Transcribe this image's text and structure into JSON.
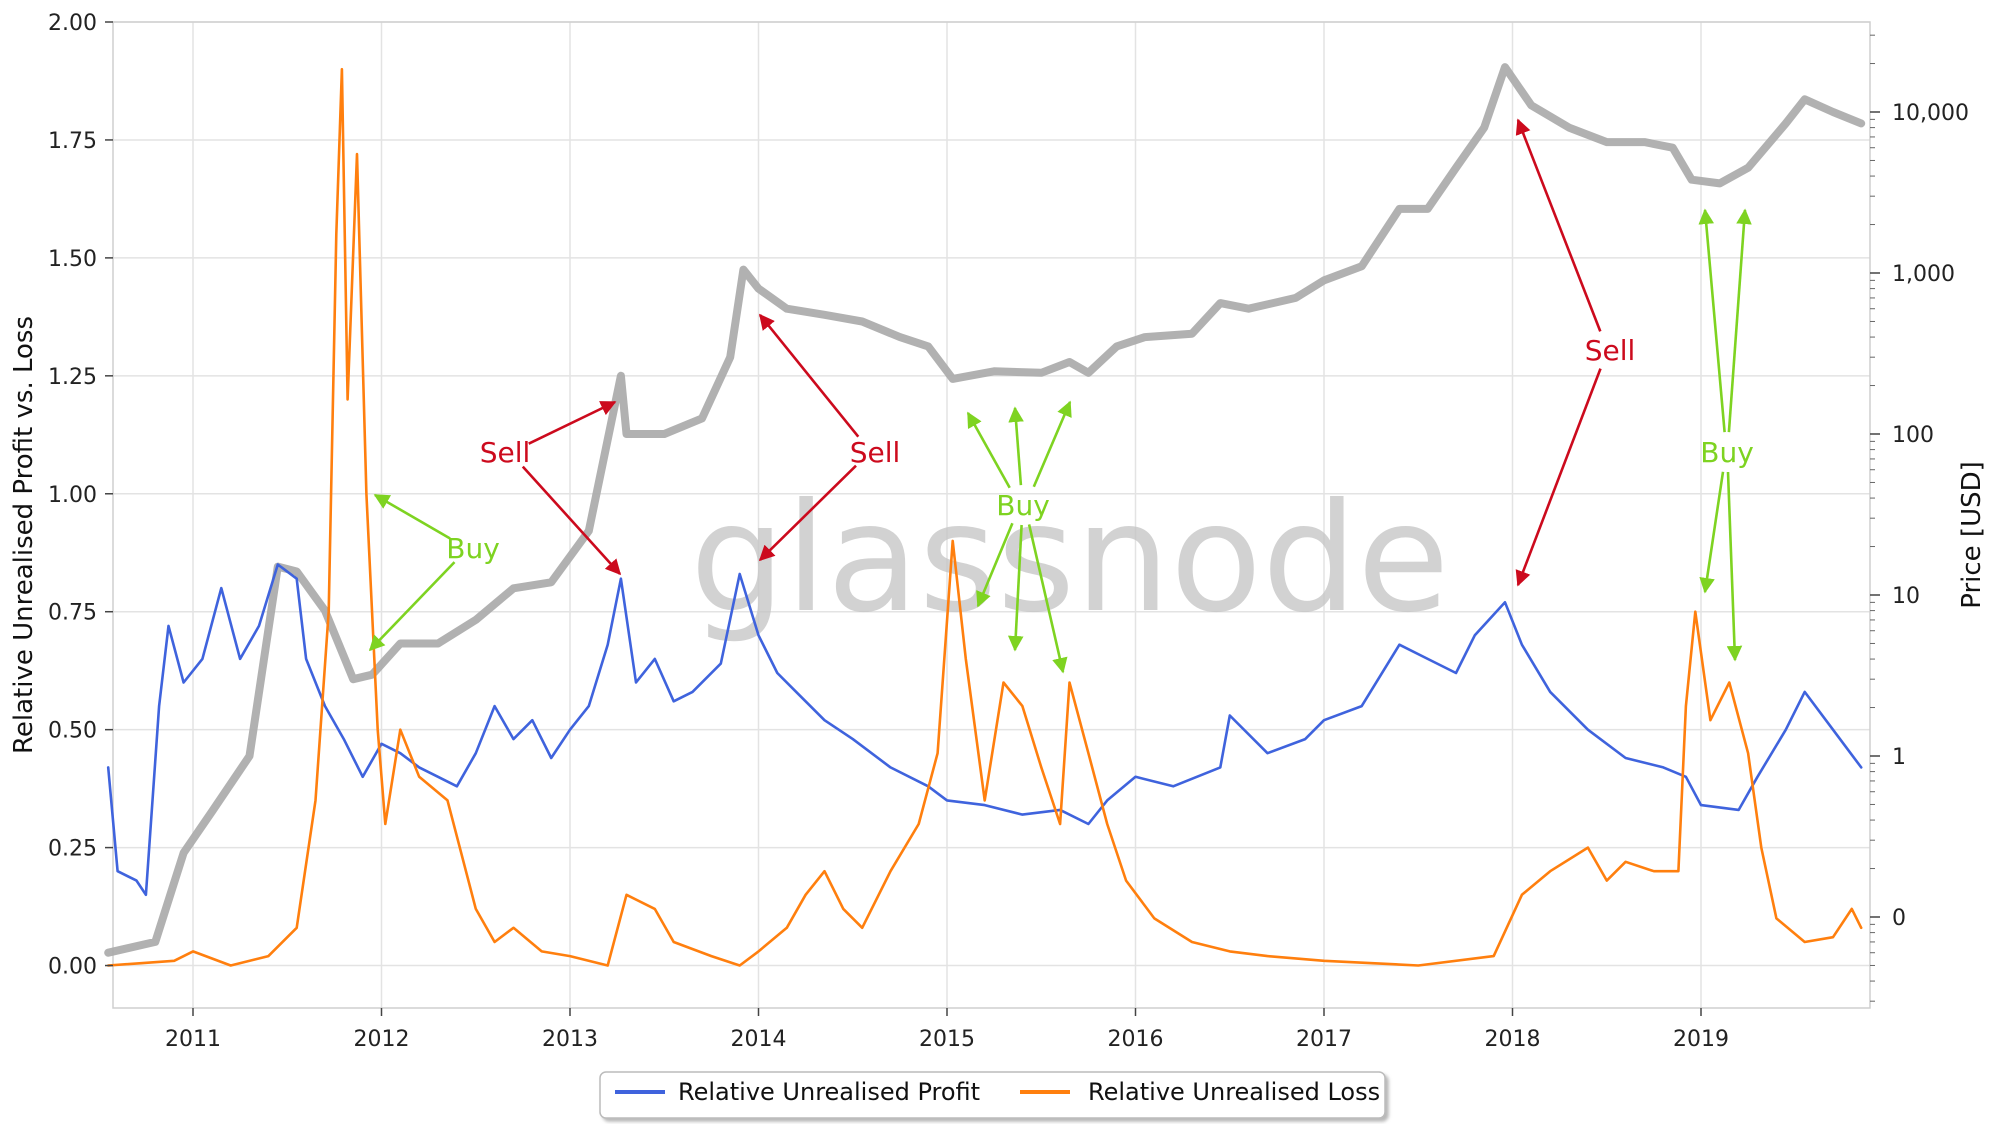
{
  "chart_data": {
    "type": "line",
    "watermark": "glassnode",
    "x_ticks": [
      "2011",
      "2012",
      "2013",
      "2014",
      "2015",
      "2016",
      "2017",
      "2018",
      "2019"
    ],
    "y_left": {
      "label": "Relative Unrealised Profit vs. Loss",
      "range": [
        -0.09,
        2.0
      ],
      "ticks": [
        "0.00",
        "0.25",
        "0.50",
        "0.75",
        "1.00",
        "1.25",
        "1.50",
        "1.75",
        "2.00"
      ]
    },
    "y_right": {
      "label": "Price [USD]",
      "scale": "log",
      "ticks": [
        "0",
        "1",
        "10",
        "100",
        "1,000",
        "10,000"
      ]
    },
    "grid": true,
    "legend_position": "bottom-center",
    "series": [
      {
        "name": "Relative Unrealised Profit",
        "color": "#3f63dd",
        "axis": "left",
        "points": [
          [
            2010.55,
            0.42
          ],
          [
            2010.6,
            0.2
          ],
          [
            2010.7,
            0.18
          ],
          [
            2010.75,
            0.15
          ],
          [
            2010.82,
            0.55
          ],
          [
            2010.87,
            0.72
          ],
          [
            2010.95,
            0.6
          ],
          [
            2011.05,
            0.65
          ],
          [
            2011.15,
            0.8
          ],
          [
            2011.25,
            0.65
          ],
          [
            2011.35,
            0.72
          ],
          [
            2011.45,
            0.85
          ],
          [
            2011.55,
            0.82
          ],
          [
            2011.6,
            0.65
          ],
          [
            2011.7,
            0.55
          ],
          [
            2011.8,
            0.48
          ],
          [
            2011.9,
            0.4
          ],
          [
            2012.0,
            0.47
          ],
          [
            2012.1,
            0.45
          ],
          [
            2012.2,
            0.42
          ],
          [
            2012.3,
            0.4
          ],
          [
            2012.4,
            0.38
          ],
          [
            2012.5,
            0.45
          ],
          [
            2012.6,
            0.55
          ],
          [
            2012.7,
            0.48
          ],
          [
            2012.8,
            0.52
          ],
          [
            2012.9,
            0.44
          ],
          [
            2013.0,
            0.5
          ],
          [
            2013.1,
            0.55
          ],
          [
            2013.2,
            0.68
          ],
          [
            2013.27,
            0.82
          ],
          [
            2013.35,
            0.6
          ],
          [
            2013.45,
            0.65
          ],
          [
            2013.55,
            0.56
          ],
          [
            2013.65,
            0.58
          ],
          [
            2013.8,
            0.64
          ],
          [
            2013.9,
            0.83
          ],
          [
            2014.0,
            0.7
          ],
          [
            2014.1,
            0.62
          ],
          [
            2014.2,
            0.58
          ],
          [
            2014.35,
            0.52
          ],
          [
            2014.5,
            0.48
          ],
          [
            2014.7,
            0.42
          ],
          [
            2014.9,
            0.38
          ],
          [
            2015.0,
            0.35
          ],
          [
            2015.2,
            0.34
          ],
          [
            2015.4,
            0.32
          ],
          [
            2015.6,
            0.33
          ],
          [
            2015.75,
            0.3
          ],
          [
            2015.85,
            0.35
          ],
          [
            2016.0,
            0.4
          ],
          [
            2016.2,
            0.38
          ],
          [
            2016.45,
            0.42
          ],
          [
            2016.5,
            0.53
          ],
          [
            2016.7,
            0.45
          ],
          [
            2016.9,
            0.48
          ],
          [
            2017.0,
            0.52
          ],
          [
            2017.2,
            0.55
          ],
          [
            2017.4,
            0.68
          ],
          [
            2017.55,
            0.65
          ],
          [
            2017.7,
            0.62
          ],
          [
            2017.8,
            0.7
          ],
          [
            2017.96,
            0.77
          ],
          [
            2018.05,
            0.68
          ],
          [
            2018.2,
            0.58
          ],
          [
            2018.4,
            0.5
          ],
          [
            2018.6,
            0.44
          ],
          [
            2018.8,
            0.42
          ],
          [
            2018.92,
            0.4
          ],
          [
            2019.0,
            0.34
          ],
          [
            2019.2,
            0.33
          ],
          [
            2019.3,
            0.4
          ],
          [
            2019.45,
            0.5
          ],
          [
            2019.55,
            0.58
          ],
          [
            2019.7,
            0.5
          ],
          [
            2019.85,
            0.42
          ]
        ]
      },
      {
        "name": "Relative Unrealised Loss",
        "color": "#ff7f0e",
        "axis": "left",
        "points": [
          [
            2010.55,
            0.0
          ],
          [
            2010.9,
            0.01
          ],
          [
            2011.0,
            0.03
          ],
          [
            2011.2,
            0.0
          ],
          [
            2011.4,
            0.02
          ],
          [
            2011.55,
            0.08
          ],
          [
            2011.65,
            0.35
          ],
          [
            2011.72,
            0.75
          ],
          [
            2011.76,
            1.55
          ],
          [
            2011.79,
            1.9
          ],
          [
            2011.82,
            1.2
          ],
          [
            2011.87,
            1.72
          ],
          [
            2011.92,
            1.0
          ],
          [
            2011.98,
            0.5
          ],
          [
            2012.02,
            0.3
          ],
          [
            2012.1,
            0.5
          ],
          [
            2012.2,
            0.4
          ],
          [
            2012.35,
            0.35
          ],
          [
            2012.5,
            0.12
          ],
          [
            2012.6,
            0.05
          ],
          [
            2012.7,
            0.08
          ],
          [
            2012.85,
            0.03
          ],
          [
            2013.0,
            0.02
          ],
          [
            2013.2,
            0.0
          ],
          [
            2013.3,
            0.15
          ],
          [
            2013.45,
            0.12
          ],
          [
            2013.55,
            0.05
          ],
          [
            2013.75,
            0.02
          ],
          [
            2013.9,
            0.0
          ],
          [
            2014.0,
            0.03
          ],
          [
            2014.15,
            0.08
          ],
          [
            2014.25,
            0.15
          ],
          [
            2014.35,
            0.2
          ],
          [
            2014.45,
            0.12
          ],
          [
            2014.55,
            0.08
          ],
          [
            2014.7,
            0.2
          ],
          [
            2014.85,
            0.3
          ],
          [
            2014.95,
            0.45
          ],
          [
            2015.03,
            0.9
          ],
          [
            2015.1,
            0.65
          ],
          [
            2015.2,
            0.35
          ],
          [
            2015.3,
            0.6
          ],
          [
            2015.4,
            0.55
          ],
          [
            2015.5,
            0.42
          ],
          [
            2015.6,
            0.3
          ],
          [
            2015.65,
            0.6
          ],
          [
            2015.75,
            0.45
          ],
          [
            2015.85,
            0.3
          ],
          [
            2015.95,
            0.18
          ],
          [
            2016.1,
            0.1
          ],
          [
            2016.3,
            0.05
          ],
          [
            2016.5,
            0.03
          ],
          [
            2016.7,
            0.02
          ],
          [
            2017.0,
            0.01
          ],
          [
            2017.5,
            0.0
          ],
          [
            2017.9,
            0.02
          ],
          [
            2018.05,
            0.15
          ],
          [
            2018.2,
            0.2
          ],
          [
            2018.4,
            0.25
          ],
          [
            2018.5,
            0.18
          ],
          [
            2018.6,
            0.22
          ],
          [
            2018.75,
            0.2
          ],
          [
            2018.88,
            0.2
          ],
          [
            2018.92,
            0.55
          ],
          [
            2018.97,
            0.75
          ],
          [
            2019.05,
            0.52
          ],
          [
            2019.15,
            0.6
          ],
          [
            2019.25,
            0.45
          ],
          [
            2019.32,
            0.25
          ],
          [
            2019.4,
            0.1
          ],
          [
            2019.55,
            0.05
          ],
          [
            2019.7,
            0.06
          ],
          [
            2019.8,
            0.12
          ],
          [
            2019.85,
            0.08
          ]
        ]
      },
      {
        "name": "Price",
        "color": "#a8a8a8",
        "axis": "right",
        "points": [
          [
            2010.55,
            0.06
          ],
          [
            2010.8,
            0.07
          ],
          [
            2010.95,
            0.25
          ],
          [
            2011.1,
            0.45
          ],
          [
            2011.3,
            1.0
          ],
          [
            2011.45,
            15
          ],
          [
            2011.55,
            14
          ],
          [
            2011.7,
            8
          ],
          [
            2011.85,
            3
          ],
          [
            2011.95,
            3.2
          ],
          [
            2012.1,
            5
          ],
          [
            2012.3,
            5
          ],
          [
            2012.5,
            7
          ],
          [
            2012.7,
            11
          ],
          [
            2012.9,
            12
          ],
          [
            2013.1,
            25
          ],
          [
            2013.27,
            230
          ],
          [
            2013.3,
            100
          ],
          [
            2013.5,
            100
          ],
          [
            2013.7,
            125
          ],
          [
            2013.85,
            300
          ],
          [
            2013.92,
            1050
          ],
          [
            2014.0,
            800
          ],
          [
            2014.15,
            600
          ],
          [
            2014.35,
            550
          ],
          [
            2014.55,
            500
          ],
          [
            2014.75,
            400
          ],
          [
            2014.9,
            350
          ],
          [
            2015.03,
            220
          ],
          [
            2015.25,
            245
          ],
          [
            2015.5,
            240
          ],
          [
            2015.65,
            280
          ],
          [
            2015.75,
            240
          ],
          [
            2015.9,
            350
          ],
          [
            2016.05,
            400
          ],
          [
            2016.3,
            420
          ],
          [
            2016.45,
            650
          ],
          [
            2016.6,
            600
          ],
          [
            2016.85,
            700
          ],
          [
            2017.0,
            900
          ],
          [
            2017.2,
            1100
          ],
          [
            2017.4,
            2500
          ],
          [
            2017.55,
            2500
          ],
          [
            2017.7,
            4500
          ],
          [
            2017.85,
            8000
          ],
          [
            2017.96,
            19000
          ],
          [
            2018.1,
            11000
          ],
          [
            2018.3,
            8000
          ],
          [
            2018.5,
            6500
          ],
          [
            2018.7,
            6500
          ],
          [
            2018.85,
            6000
          ],
          [
            2018.95,
            3800
          ],
          [
            2019.1,
            3600
          ],
          [
            2019.25,
            4500
          ],
          [
            2019.45,
            8500
          ],
          [
            2019.55,
            12000
          ],
          [
            2019.7,
            10000
          ],
          [
            2019.85,
            8500
          ]
        ]
      }
    ],
    "annotations": [
      {
        "text": "Buy",
        "color": "#7ed321"
      },
      {
        "text": "Sell",
        "color": "#cc0a1d"
      },
      {
        "text": "Sell",
        "color": "#cc0a1d"
      },
      {
        "text": "Buy",
        "color": "#7ed321"
      },
      {
        "text": "Sell",
        "color": "#cc0a1d"
      },
      {
        "text": "Buy",
        "color": "#7ed321"
      }
    ],
    "legend": [
      "Relative Unrealised Profit",
      "Relative Unrealised Loss"
    ]
  }
}
